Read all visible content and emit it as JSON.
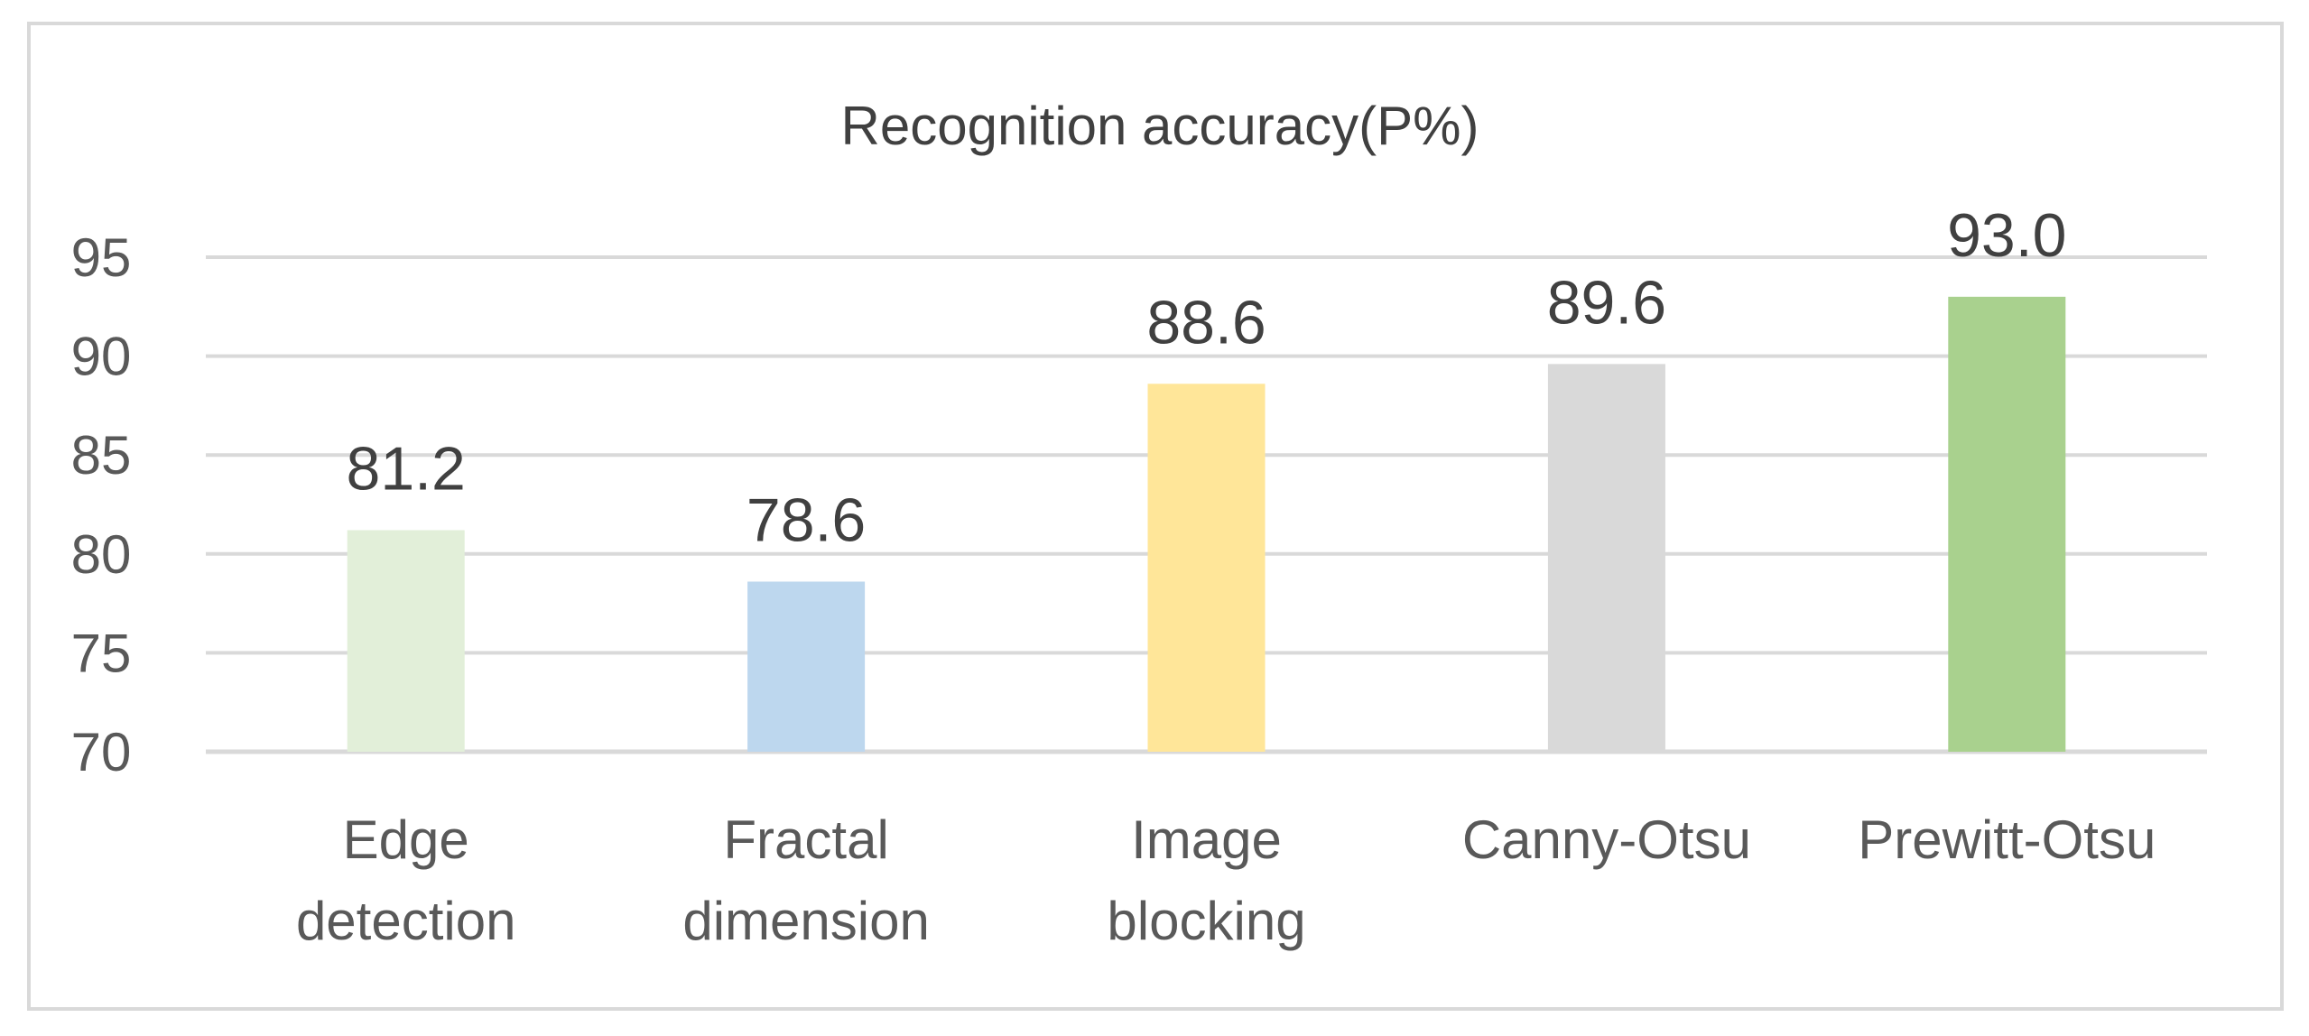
{
  "chart_data": {
    "type": "bar",
    "title": "Recognition accuracy(P%)",
    "xlabel": "",
    "ylabel": "",
    "categories": [
      [
        "Edge",
        "detection"
      ],
      [
        "Fractal",
        "dimension"
      ],
      [
        "Image",
        "blocking"
      ],
      [
        "Canny-Otsu"
      ],
      [
        "Prewitt-Otsu"
      ]
    ],
    "values": [
      81.2,
      78.6,
      88.6,
      89.6,
      93.0
    ],
    "data_labels": [
      "81.2",
      "78.6",
      "88.6",
      "89.6",
      "93.0"
    ],
    "bar_colors": [
      "#e2efd9",
      "#bdd7ee",
      "#ffe699",
      "#d9d9d9",
      "#a9d18e"
    ],
    "ylim": [
      70,
      95
    ],
    "yticks": [
      70,
      75,
      80,
      85,
      90,
      95
    ],
    "grid": true,
    "legend": "none",
    "colors": {
      "gridline": "#d9d9d9",
      "frame": "#d9d9d9"
    }
  }
}
